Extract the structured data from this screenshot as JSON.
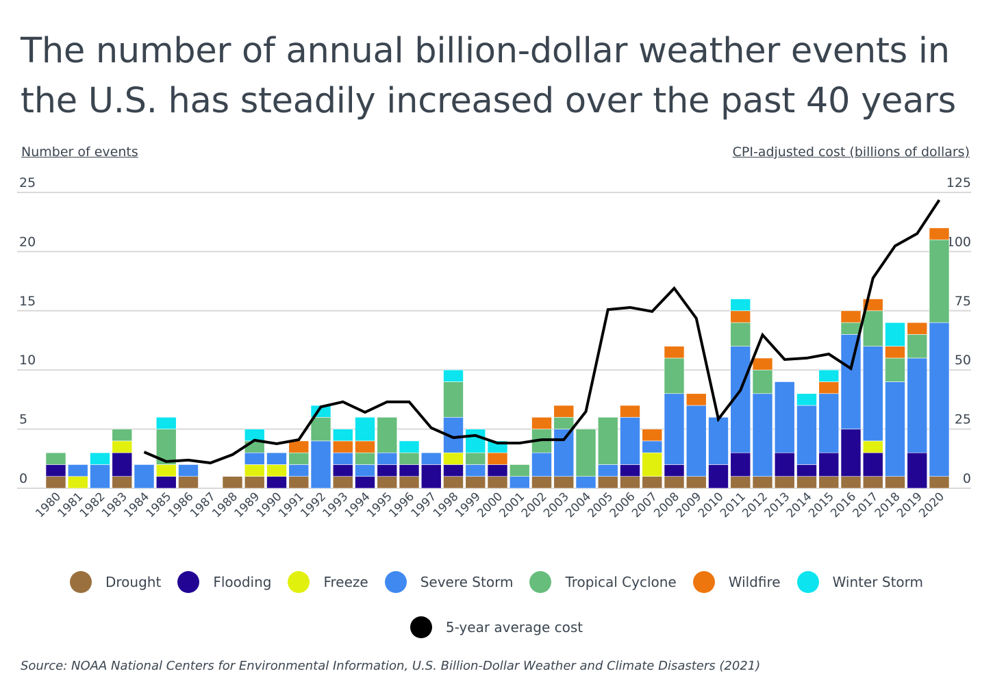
{
  "title": "The number of annual billion-dollar weather events in the U.S. has steadily increased over the past 40 years",
  "source": "Source: NOAA National Centers for Environmental Information, U.S. Billion-Dollar Weather and Climate Disasters (2021)",
  "chart_data": {
    "type": "bar",
    "stacked": true,
    "title": "The number of annual billion-dollar weather events in the U.S. has steadily increased over the past 40 years",
    "ylabel": "Number of events",
    "y2label": "CPI-adjusted cost (billions of dollars)",
    "xlabel": "",
    "ylim": [
      0,
      25
    ],
    "y2lim": [
      0,
      125
    ],
    "yticks": [
      0,
      5,
      10,
      15,
      20,
      25
    ],
    "y2ticks": [
      0,
      25,
      50,
      75,
      100,
      125
    ],
    "grid": true,
    "legend_position": "bottom",
    "categories": [
      "1980",
      "1981",
      "1982",
      "1983",
      "1984",
      "1985",
      "1986",
      "1987",
      "1988",
      "1989",
      "1990",
      "1991",
      "1992",
      "1993",
      "1994",
      "1995",
      "1996",
      "1997",
      "1998",
      "1999",
      "2000",
      "2001",
      "2002",
      "2003",
      "2004",
      "2005",
      "2006",
      "2007",
      "2008",
      "2009",
      "2010",
      "2011",
      "2012",
      "2013",
      "2014",
      "2015",
      "2016",
      "2017",
      "2018",
      "2019",
      "2020"
    ],
    "series": [
      {
        "name": "Drought",
        "color": "#9a703e",
        "values": [
          1,
          0,
          0,
          1,
          0,
          0,
          1,
          0,
          1,
          1,
          0,
          1,
          0,
          1,
          0,
          1,
          1,
          0,
          1,
          1,
          1,
          0,
          1,
          1,
          0,
          1,
          1,
          1,
          1,
          1,
          0,
          1,
          1,
          1,
          1,
          1,
          1,
          1,
          1,
          0,
          1
        ]
      },
      {
        "name": "Flooding",
        "color": "#230594",
        "values": [
          1,
          0,
          0,
          2,
          0,
          1,
          0,
          0,
          0,
          0,
          1,
          0,
          0,
          1,
          1,
          1,
          1,
          2,
          1,
          0,
          1,
          0,
          0,
          0,
          0,
          0,
          1,
          0,
          1,
          0,
          2,
          2,
          0,
          2,
          1,
          2,
          4,
          2,
          0,
          3,
          0
        ]
      },
      {
        "name": "Freeze",
        "color": "#e2f00e",
        "values": [
          0,
          1,
          0,
          1,
          0,
          1,
          0,
          0,
          0,
          1,
          1,
          0,
          0,
          0,
          0,
          0,
          0,
          0,
          1,
          0,
          0,
          0,
          0,
          0,
          0,
          0,
          0,
          2,
          0,
          0,
          0,
          0,
          0,
          0,
          0,
          0,
          0,
          1,
          0,
          0,
          0
        ]
      },
      {
        "name": "Severe Storm",
        "color": "#4089f1",
        "values": [
          0,
          1,
          2,
          0,
          2,
          0,
          1,
          0,
          0,
          1,
          1,
          1,
          4,
          1,
          1,
          1,
          0,
          1,
          3,
          1,
          0,
          1,
          2,
          4,
          1,
          1,
          4,
          1,
          6,
          6,
          4,
          9,
          7,
          6,
          5,
          5,
          8,
          8,
          8,
          8,
          13
        ]
      },
      {
        "name": "Tropical Cyclone",
        "color": "#67bd7c",
        "values": [
          1,
          0,
          0,
          1,
          0,
          3,
          0,
          0,
          0,
          1,
          0,
          1,
          2,
          0,
          1,
          3,
          1,
          0,
          3,
          1,
          0,
          1,
          2,
          1,
          4,
          4,
          0,
          0,
          3,
          0,
          0,
          2,
          2,
          0,
          0,
          0,
          1,
          3,
          2,
          2,
          7
        ]
      },
      {
        "name": "Wildfire",
        "color": "#ee760f",
        "values": [
          0,
          0,
          0,
          0,
          0,
          0,
          0,
          0,
          0,
          0,
          0,
          1,
          0,
          1,
          1,
          0,
          0,
          0,
          0,
          0,
          1,
          0,
          1,
          1,
          0,
          0,
          1,
          1,
          1,
          1,
          0,
          1,
          1,
          0,
          0,
          1,
          1,
          1,
          1,
          1,
          1
        ]
      },
      {
        "name": "Winter Storm",
        "color": "#0ce4ef",
        "values": [
          0,
          0,
          1,
          0,
          0,
          1,
          0,
          0,
          0,
          1,
          0,
          0,
          1,
          1,
          2,
          0,
          1,
          0,
          1,
          2,
          1,
          0,
          0,
          0,
          0,
          0,
          0,
          0,
          0,
          0,
          0,
          1,
          0,
          0,
          1,
          1,
          0,
          0,
          2,
          0,
          0
        ]
      }
    ],
    "totals": [
      3,
      2,
      3,
      5,
      2,
      6,
      2,
      0,
      1,
      5,
      3,
      4,
      7,
      5,
      6,
      6,
      4,
      3,
      10,
      5,
      4,
      2,
      6,
      7,
      5,
      6,
      7,
      5,
      12,
      8,
      6,
      16,
      11,
      9,
      8,
      10,
      15,
      16,
      14,
      14,
      22
    ],
    "line_series": {
      "name": "5-year average cost",
      "color": "#000000",
      "axis": "right",
      "x": [
        "1984",
        "1985",
        "1986",
        "1987",
        "1988",
        "1989",
        "1990",
        "1991",
        "1992",
        "1993",
        "1994",
        "1995",
        "1996",
        "1997",
        "1998",
        "1999",
        "2000",
        "2001",
        "2002",
        "2003",
        "2004",
        "2005",
        "2006",
        "2007",
        "2008",
        "2009",
        "2010",
        "2011",
        "2012",
        "2013",
        "2014",
        "2015",
        "2016",
        "2017",
        "2018",
        "2019",
        "2020"
      ],
      "values": [
        15.3,
        11.3,
        11.9,
        10.7,
        14.2,
        20.3,
        18.8,
        20.5,
        34.4,
        36.5,
        32.1,
        36.5,
        36.5,
        25.5,
        21.4,
        22.3,
        19.1,
        19.1,
        20.5,
        20.5,
        32.4,
        75.5,
        76.4,
        74.7,
        84.5,
        71.8,
        29.2,
        41.4,
        64.8,
        54.4,
        55.0,
        56.7,
        50.6,
        88.8,
        102.4,
        107.6,
        121.8
      ]
    }
  },
  "legend": {
    "items": [
      {
        "label": "Drought",
        "color": "#9a703e"
      },
      {
        "label": "Flooding",
        "color": "#230594"
      },
      {
        "label": "Freeze",
        "color": "#e2f00e"
      },
      {
        "label": "Severe Storm",
        "color": "#4089f1"
      },
      {
        "label": "Tropical Cyclone",
        "color": "#67bd7c"
      },
      {
        "label": "Wildfire",
        "color": "#ee760f"
      },
      {
        "label": "Winter Storm",
        "color": "#0ce4ef"
      }
    ],
    "line_item": {
      "label": "5-year average cost",
      "color": "#000000"
    }
  }
}
